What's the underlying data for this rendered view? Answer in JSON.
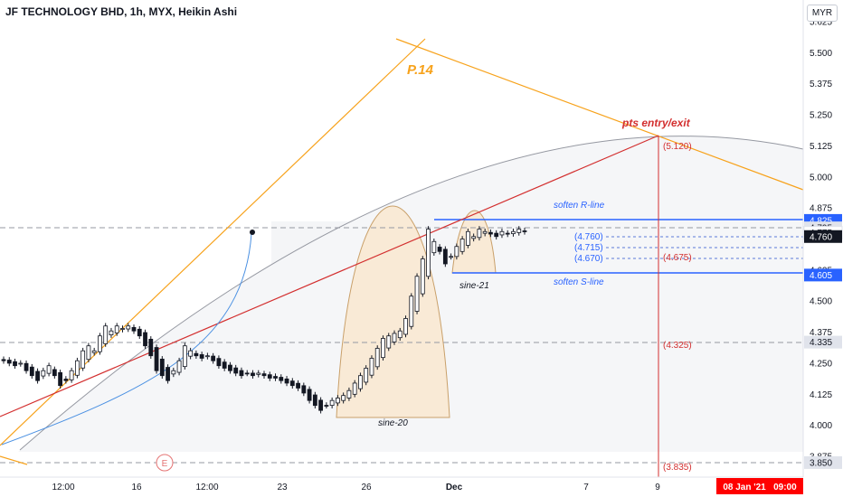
{
  "header": {
    "title": "JF TECHNOLOGY BHD, 1h, MYX, Heikin Ashi",
    "currency_button": "MYR"
  },
  "price_axis": {
    "ticks": [
      "5.625",
      "5.500",
      "5.375",
      "5.250",
      "5.125",
      "5.000",
      "4.875",
      "4.750",
      "4.625",
      "4.500",
      "4.375",
      "4.250",
      "4.125",
      "4.000",
      "3.875"
    ],
    "label_tags": [
      {
        "text": "4.825",
        "price": 4.825,
        "bg": "#2962ff",
        "fg": "#ffffff"
      },
      {
        "text": "4.795",
        "price": 4.795,
        "bg": "#e0e3eb",
        "fg": "#131722"
      },
      {
        "text": "4.775",
        "price": 4.775,
        "bg": "#ffffff",
        "fg": "#131722"
      },
      {
        "text": "4.760",
        "price": 4.76,
        "bg": "#131722",
        "fg": "#ffffff"
      },
      {
        "text": "4.605",
        "price": 4.605,
        "bg": "#2962ff",
        "fg": "#ffffff"
      },
      {
        "text": "4.335",
        "price": 4.335,
        "bg": "#e0e3eb",
        "fg": "#131722"
      },
      {
        "text": "3.850",
        "price": 3.85,
        "bg": "#e0e3eb",
        "fg": "#131722"
      }
    ]
  },
  "time_axis": {
    "ticks": [
      "12:00",
      "16",
      "12:00",
      "23",
      "26",
      "Dec",
      "7",
      "9"
    ],
    "cursor_label": "08 Jan '21   09:00"
  },
  "annotations": {
    "p14": "P.14",
    "pts_entry_exit": "pts entry/exit",
    "soften_r_line": "soften R-line",
    "soften_s_line": "soften S-line",
    "sine_21": "sine-21",
    "sine_20": "sine-20",
    "earnings_marker": "E"
  },
  "levels": {
    "blue_labels": [
      "(4.760)",
      "(4.715)",
      "(4.670)"
    ],
    "red_labels": [
      "(5.120)",
      "(4.675)",
      "(4.325)",
      "(3.835)"
    ]
  },
  "colors": {
    "orange": "#f7a21b",
    "red": "#d32f2f",
    "blue": "#2962ff",
    "candle_dark": "#131722",
    "sine_fill": "#f9ead6",
    "cursor_red": "#ff0000"
  },
  "chart_data": {
    "type": "candlestick",
    "title": "JF TECHNOLOGY BHD, 1h, MYX, Heikin Ashi",
    "ylim": [
      3.83,
      5.66
    ],
    "y_ticks": [
      3.875,
      4.0,
      4.125,
      4.25,
      4.375,
      4.5,
      4.625,
      4.75,
      4.875,
      5.0,
      5.125,
      5.25,
      5.375,
      5.5,
      5.625
    ],
    "x_ticks": [
      "12:00",
      "16",
      "12:00",
      "23",
      "26",
      "Dec",
      "7",
      "9"
    ],
    "candle_closes": [
      4.26,
      4.25,
      4.24,
      4.25,
      4.22,
      4.2,
      4.18,
      4.22,
      4.24,
      4.2,
      4.16,
      4.18,
      4.22,
      4.26,
      4.3,
      4.32,
      4.3,
      4.36,
      4.4,
      4.38,
      4.4,
      4.39,
      4.4,
      4.38,
      4.36,
      4.32,
      4.28,
      4.22,
      4.2,
      4.18,
      4.22,
      4.26,
      4.32,
      4.3,
      4.28,
      4.27,
      4.28,
      4.26,
      4.24,
      4.23,
      4.22,
      4.21,
      4.2,
      4.21,
      4.2,
      4.21,
      4.2,
      4.19,
      4.19,
      4.18,
      4.17,
      4.16,
      4.15,
      4.13,
      4.1,
      4.08,
      4.06,
      4.08,
      4.1,
      4.11,
      4.12,
      4.14,
      4.17,
      4.2,
      4.23,
      4.27,
      4.31,
      4.35,
      4.36,
      4.37,
      4.38,
      4.43,
      4.52,
      4.6,
      4.67,
      4.79,
      4.74,
      4.7,
      4.65,
      4.68,
      4.72,
      4.75,
      4.78,
      4.76,
      4.79,
      4.78,
      4.77,
      4.76,
      4.78,
      4.77,
      4.78,
      4.79,
      4.78
    ],
    "price_lines": {
      "soften_r_line": 4.825,
      "soften_s_line": 4.605,
      "dashed_levels": [
        4.795,
        4.76,
        4.715,
        4.67,
        4.335,
        3.85
      ],
      "red_levels": [
        5.12,
        4.675,
        4.325,
        3.835
      ]
    },
    "cursor_time": "08 Jan '21 09:00"
  }
}
